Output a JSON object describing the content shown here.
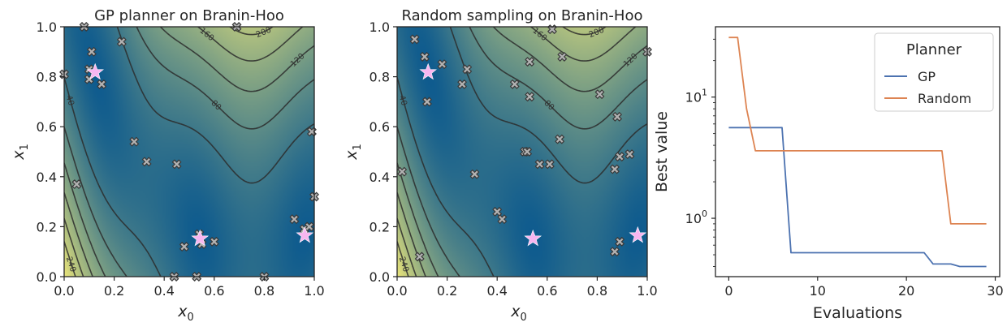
{
  "colors": {
    "gp": "#4c72b0",
    "random": "#dd8452",
    "marker_fill": "#b3b3b3",
    "marker_edge": "#3a3a3a",
    "star": "#f7b6f0",
    "contour": "#2b2b2b",
    "field_low": "#0d5a8e",
    "field_high": "#e6e27a"
  },
  "chart_data": [
    {
      "type": "scatter",
      "title": "GP planner on Branin-Hoo",
      "xlabel_base": "x",
      "xlabel_sub": "0",
      "ylabel_base": "x",
      "ylabel_sub": "1",
      "xlim": [
        0,
        1
      ],
      "ylim": [
        0,
        1
      ],
      "xticks": [
        "0.0",
        "0.2",
        "0.4",
        "0.6",
        "0.8",
        "1.0"
      ],
      "yticks": [
        "0.0",
        "0.2",
        "0.4",
        "0.6",
        "0.8",
        "1.0"
      ],
      "contour_levels": [
        "40",
        "80",
        "120",
        "160",
        "200",
        "240"
      ],
      "optima": [
        [
          0.124,
          0.818
        ],
        [
          0.543,
          0.152
        ],
        [
          0.962,
          0.165
        ]
      ],
      "points": [
        [
          0.08,
          1.0
        ],
        [
          0.11,
          0.9
        ],
        [
          0.1,
          0.83
        ],
        [
          0.1,
          0.79
        ],
        [
          0.15,
          0.77
        ],
        [
          0.23,
          0.94
        ],
        [
          0.0,
          0.81
        ],
        [
          0.69,
          1.0
        ],
        [
          0.05,
          0.37
        ],
        [
          0.28,
          0.54
        ],
        [
          0.33,
          0.46
        ],
        [
          0.45,
          0.45
        ],
        [
          0.48,
          0.12
        ],
        [
          0.54,
          0.17
        ],
        [
          0.55,
          0.13
        ],
        [
          0.6,
          0.14
        ],
        [
          0.44,
          0.0
        ],
        [
          0.53,
          0.0
        ],
        [
          0.8,
          0.0
        ],
        [
          0.92,
          0.23
        ],
        [
          0.96,
          0.19
        ],
        [
          0.98,
          0.2
        ],
        [
          0.99,
          0.58
        ],
        [
          1.0,
          0.32
        ]
      ]
    },
    {
      "type": "scatter",
      "title": "Random sampling on Branin-Hoo",
      "xlabel_base": "x",
      "xlabel_sub": "0",
      "ylabel_base": "x",
      "ylabel_sub": "1",
      "xlim": [
        0,
        1
      ],
      "ylim": [
        0,
        1
      ],
      "xticks": [
        "0.0",
        "0.2",
        "0.4",
        "0.6",
        "0.8",
        "1.0"
      ],
      "yticks": [
        "0.0",
        "0.2",
        "0.4",
        "0.6",
        "0.8",
        "1.0"
      ],
      "contour_levels": [
        "40",
        "80",
        "120",
        "160",
        "200",
        "240"
      ],
      "optima": [
        [
          0.124,
          0.818
        ],
        [
          0.543,
          0.152
        ],
        [
          0.962,
          0.165
        ]
      ],
      "points": [
        [
          0.07,
          0.95
        ],
        [
          0.11,
          0.88
        ],
        [
          0.18,
          0.85
        ],
        [
          0.28,
          0.83
        ],
        [
          0.26,
          0.77
        ],
        [
          0.12,
          0.7
        ],
        [
          0.47,
          0.77
        ],
        [
          0.53,
          0.86
        ],
        [
          0.53,
          0.72
        ],
        [
          0.62,
          0.99
        ],
        [
          0.66,
          0.88
        ],
        [
          0.81,
          0.73
        ],
        [
          0.88,
          0.64
        ],
        [
          1.0,
          0.9
        ],
        [
          0.02,
          0.42
        ],
        [
          0.31,
          0.41
        ],
        [
          0.51,
          0.5
        ],
        [
          0.52,
          0.5
        ],
        [
          0.65,
          0.55
        ],
        [
          0.57,
          0.45
        ],
        [
          0.61,
          0.45
        ],
        [
          0.87,
          0.43
        ],
        [
          0.89,
          0.48
        ],
        [
          0.93,
          0.49
        ],
        [
          0.4,
          0.26
        ],
        [
          0.42,
          0.23
        ],
        [
          0.09,
          0.08
        ],
        [
          0.87,
          0.1
        ],
        [
          0.89,
          0.14
        ]
      ]
    },
    {
      "type": "line",
      "xlabel": "Evaluations",
      "ylabel": "Best value",
      "xlim": [
        -1.5,
        30.5
      ],
      "ylim": [
        0.33,
        38
      ],
      "yscale": "log",
      "xticks": [
        "0",
        "10",
        "20",
        "30"
      ],
      "yticks": [
        {
          "base": "10",
          "exp": "0"
        },
        {
          "base": "10",
          "exp": "1"
        }
      ],
      "legend_title": "Planner",
      "legend_position": "top-right",
      "x": [
        0,
        1,
        2,
        3,
        4,
        5,
        6,
        7,
        8,
        9,
        10,
        11,
        12,
        13,
        14,
        15,
        16,
        17,
        18,
        19,
        20,
        21,
        22,
        23,
        24,
        25,
        26,
        27,
        28,
        29
      ],
      "series": [
        {
          "name": "GP",
          "values": [
            5.6,
            5.6,
            5.6,
            5.6,
            5.6,
            5.6,
            5.6,
            0.52,
            0.52,
            0.52,
            0.52,
            0.52,
            0.52,
            0.52,
            0.52,
            0.52,
            0.52,
            0.52,
            0.52,
            0.52,
            0.52,
            0.52,
            0.52,
            0.42,
            0.42,
            0.42,
            0.4,
            0.4,
            0.4,
            0.4
          ]
        },
        {
          "name": "Random",
          "values": [
            31,
            31,
            8.0,
            3.6,
            3.6,
            3.6,
            3.6,
            3.6,
            3.6,
            3.6,
            3.6,
            3.6,
            3.6,
            3.6,
            3.6,
            3.6,
            3.6,
            3.6,
            3.6,
            3.6,
            3.6,
            3.6,
            3.6,
            3.6,
            3.6,
            0.9,
            0.9,
            0.9,
            0.9,
            0.9
          ]
        }
      ]
    }
  ]
}
